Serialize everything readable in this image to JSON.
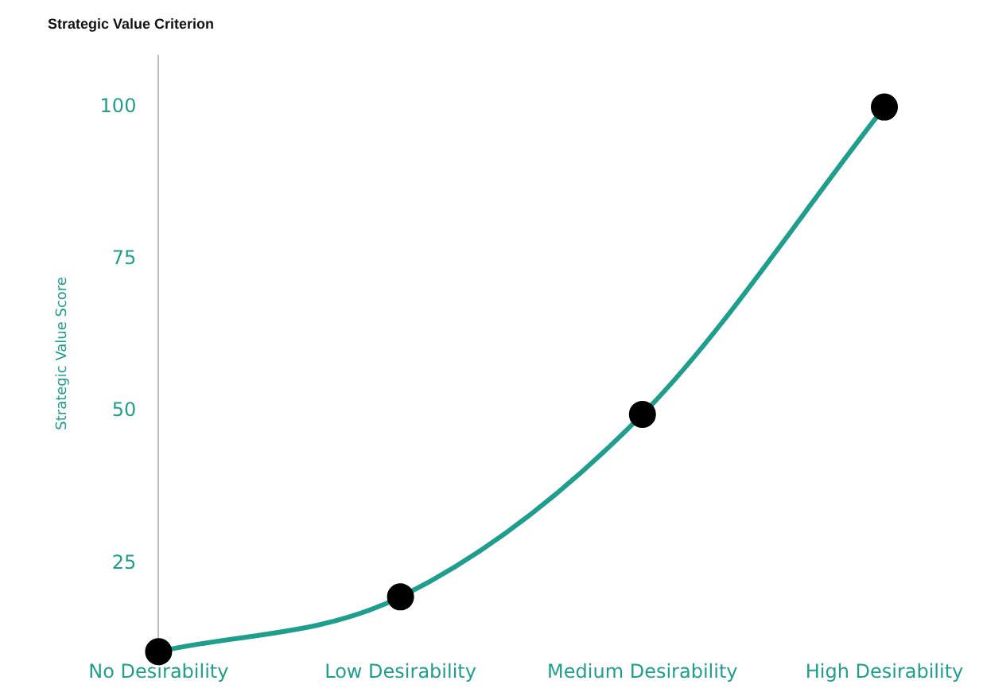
{
  "chart_data": {
    "type": "line",
    "title": "Strategic Value Criterion",
    "ylabel": "Strategic Value Score",
    "categories": [
      "No Desirability",
      "Low Desirability",
      "Medium Desirability",
      "High Desirability"
    ],
    "series": [
      {
        "color": "#1f9e8e",
        "values": [
          10.5,
          19.5,
          49.5,
          100
        ]
      }
    ],
    "ylim": [
      10.5,
      108.5
    ],
    "yticks": [
      25,
      50,
      75,
      100
    ],
    "grid": false,
    "legend": false,
    "marker": "circle"
  }
}
